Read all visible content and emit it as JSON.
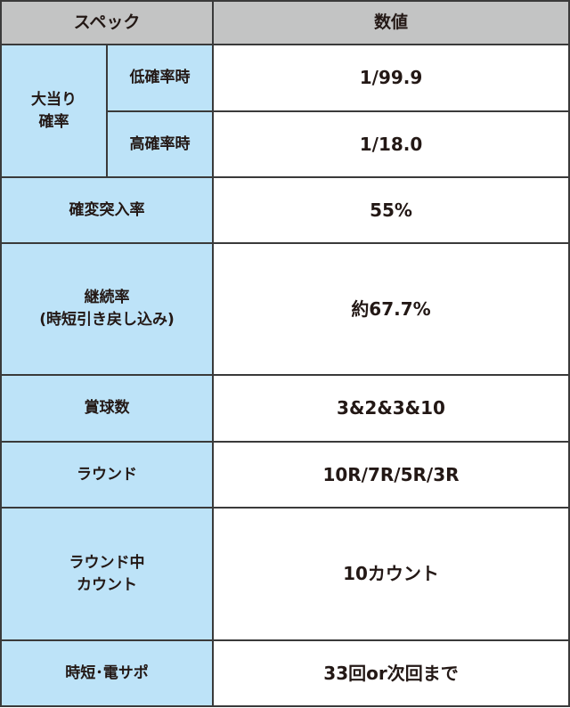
{
  "header": {
    "spec": "スペック",
    "value": "数値"
  },
  "jackpot": {
    "label_line1": "大当り",
    "label_line2": "確率",
    "low": {
      "label": "低確率時",
      "value": "1/99.9"
    },
    "high": {
      "label": "高確率時",
      "value": "1/18.0"
    }
  },
  "rows": [
    {
      "label": "確変突入率",
      "value": "55%"
    },
    {
      "label_line1": "継続率",
      "label_line2": "(時短引き戻し込み)",
      "value": "約67.7%"
    },
    {
      "label": "賞球数",
      "value": "3&2&3&10"
    },
    {
      "label": "ラウンド",
      "value": "10R/7R/5R/3R"
    },
    {
      "label_line1": "ラウンド中",
      "label_line2": "カウント",
      "value": "10カウント"
    },
    {
      "label": "時短･電サポ",
      "value": "33回or次回まで"
    }
  ],
  "colors": {
    "header_bg": "#c3c4c4",
    "label_bg": "#bde3f8",
    "border": "#3a3a3a"
  }
}
